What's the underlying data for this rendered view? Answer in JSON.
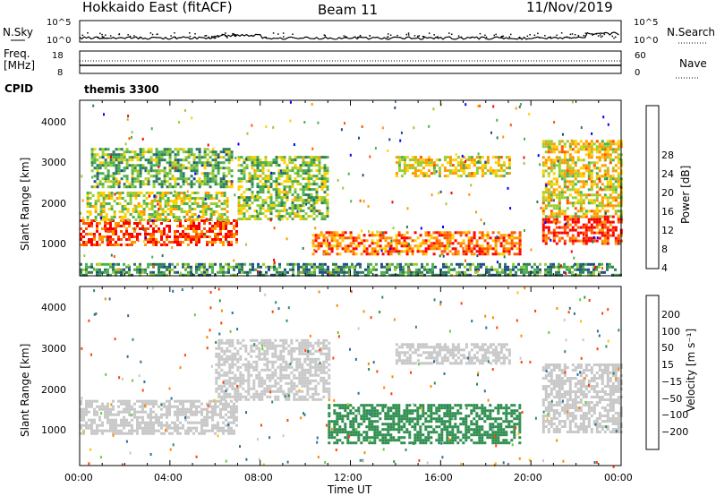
{
  "header": {
    "station": "Hokkaido East (fitACF)",
    "beam": "Beam 11",
    "date": "11/Nov/2019"
  },
  "noise_panel": {
    "left_label": "N.Sky",
    "right_label": "N.Search",
    "left_ticks": [
      "10^5",
      "10^0"
    ],
    "right_ticks": [
      "10^5",
      "10^0"
    ]
  },
  "freq_panel": {
    "left_label": "Freq.",
    "left_unit": "[MHz]",
    "left_ticks": [
      "18",
      "8"
    ],
    "right_label": "Nave",
    "right_ticks": [
      "60",
      "0"
    ],
    "cpid_label": "CPID",
    "cpid_value": "themis 3300"
  },
  "power_panel": {
    "ylabel": "Slant Range [km]",
    "yticks": [
      "4000",
      "3000",
      "2000",
      "1000"
    ],
    "colorbar_label": "Power [dB]",
    "colorbar_ticks": [
      "28",
      "24",
      "20",
      "16",
      "12",
      "8",
      "4"
    ],
    "colors": [
      "#0000ff",
      "#1f4e8a",
      "#2e7d5b",
      "#4caf50",
      "#9acd32",
      "#ffd000",
      "#ff9900",
      "#ff5500",
      "#ff0000"
    ]
  },
  "velocity_panel": {
    "ylabel": "Slant Range [km]",
    "yticks": [
      "4000",
      "3000",
      "2000",
      "1000"
    ],
    "colorbar_label": "Velocity [m s⁻¹]",
    "colorbar_ticks": [
      "200",
      "100",
      "50",
      "15",
      "−15",
      "−50",
      "−100",
      "−200"
    ],
    "colors": [
      "#1a2fa0",
      "#2f6f9a",
      "#2f8f4f",
      "#66cc33",
      "#c8c8c8",
      "#ffc000",
      "#ff8800",
      "#ff4400",
      "#ff0000"
    ]
  },
  "xaxis": {
    "label": "Time UT",
    "ticks": [
      "00:00",
      "04:00",
      "08:00",
      "12:00",
      "16:00",
      "20:00",
      "00:00"
    ]
  },
  "chart_data": {
    "type": "heatmap",
    "x_range_hours": [
      0,
      24
    ],
    "y_range_km": [
      180,
      4600
    ],
    "power_regions": [
      {
        "t0": 0.0,
        "t1": 7.0,
        "r0": 950,
        "r1": 1600,
        "level": 26
      },
      {
        "t0": 0.3,
        "t1": 6.5,
        "r0": 1600,
        "r1": 2300,
        "level": 16
      },
      {
        "t0": 0.5,
        "t1": 6.8,
        "r0": 2400,
        "r1": 3400,
        "level": 12
      },
      {
        "t0": 7.0,
        "t1": 11.0,
        "r0": 1600,
        "r1": 3200,
        "level": 14
      },
      {
        "t0": 10.3,
        "t1": 19.5,
        "r0": 750,
        "r1": 1300,
        "level": 24
      },
      {
        "t0": 14.0,
        "t1": 19.0,
        "r0": 2700,
        "r1": 3200,
        "level": 18
      },
      {
        "t0": 20.5,
        "t1": 24.0,
        "r0": 1000,
        "r1": 1700,
        "level": 26
      },
      {
        "t0": 20.5,
        "t1": 24.0,
        "r0": 1700,
        "r1": 3600,
        "level": 18
      },
      {
        "t0": 0.0,
        "t1": 24.0,
        "r0": 200,
        "r1": 500,
        "level": 10
      }
    ],
    "velocity_regions": [
      {
        "t0": 0.0,
        "t1": 7.0,
        "r0": 950,
        "r1": 1800,
        "velocity": 0
      },
      {
        "t0": 6.0,
        "t1": 11.0,
        "r0": 1800,
        "r1": 3300,
        "velocity": 0
      },
      {
        "t0": 11.0,
        "t1": 19.5,
        "r0": 750,
        "r1": 1700,
        "velocity": 60
      },
      {
        "t0": 14.0,
        "t1": 19.0,
        "r0": 2700,
        "r1": 3200,
        "velocity": 0
      },
      {
        "t0": 20.5,
        "t1": 24.0,
        "r0": 1000,
        "r1": 2700,
        "velocity": 0
      }
    ]
  }
}
